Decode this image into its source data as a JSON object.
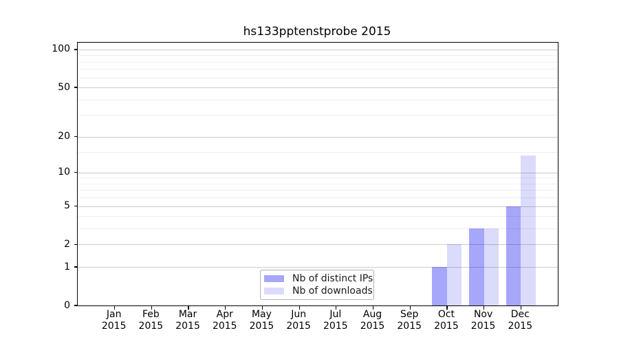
{
  "title": "hs133pptenstprobe 2015",
  "chart_data": {
    "type": "bar",
    "title": "hs133pptenstprobe 2015",
    "categories": [
      "Jan",
      "Feb",
      "Mar",
      "Apr",
      "May",
      "Jun",
      "Jul",
      "Aug",
      "Sep",
      "Oct",
      "Nov",
      "Dec"
    ],
    "year_label": "2015",
    "series": [
      {
        "name": "Nb of distinct IPs",
        "color": "rgba(0,0,240,0.35)",
        "legend_hex": "#a8a8f6",
        "values": [
          0,
          0,
          0,
          0,
          0,
          0,
          0,
          0,
          0,
          1,
          3,
          5
        ]
      },
      {
        "name": "Nb of downloads",
        "color": "rgba(0,0,235,0.14)",
        "legend_hex": "#dcdcfa",
        "values": [
          0,
          0,
          0,
          0,
          0,
          0,
          0,
          0,
          0,
          2,
          3,
          14
        ]
      }
    ],
    "xlabel": "",
    "ylabel": "",
    "y_scale": "log1p",
    "y_ticks": [
      100,
      50,
      20,
      10,
      5,
      2,
      1,
      0
    ],
    "y_minor_ticks": [
      3,
      4,
      6,
      7,
      8,
      9,
      15,
      30,
      40,
      60,
      70,
      80,
      90
    ],
    "ylim": [
      0,
      113
    ],
    "grid": true,
    "legend_position": "lower center"
  }
}
